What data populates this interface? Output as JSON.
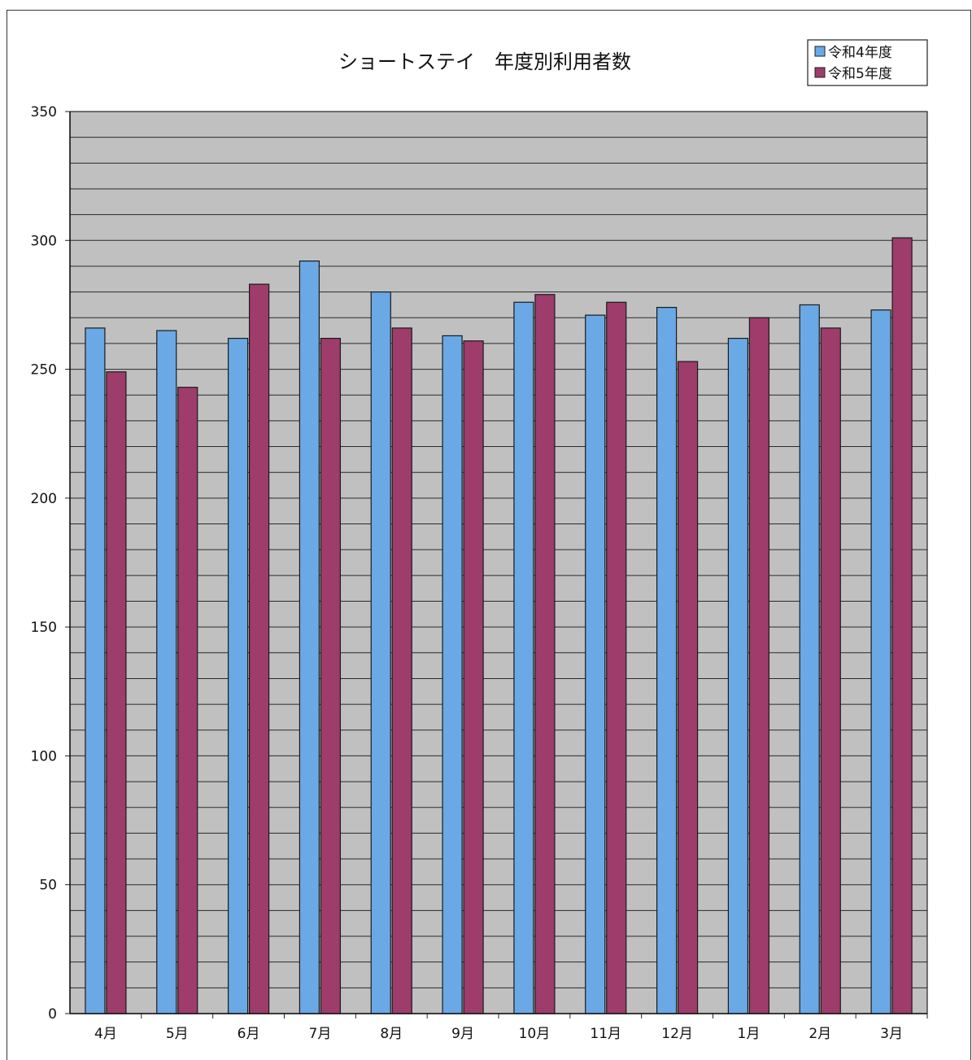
{
  "chart_data": {
    "type": "bar",
    "title": "ショートステイ　年度別利用者数",
    "categories": [
      "4月",
      "5月",
      "6月",
      "7月",
      "8月",
      "9月",
      "10月",
      "11月",
      "12月",
      "1月",
      "2月",
      "3月"
    ],
    "series": [
      {
        "name": "令和4年度",
        "color": "#6aa9e6",
        "values": [
          266,
          265,
          262,
          292,
          280,
          263,
          276,
          271,
          274,
          262,
          275,
          273
        ]
      },
      {
        "name": "令和5年度",
        "color": "#9e3c6b",
        "values": [
          249,
          243,
          283,
          262,
          266,
          261,
          279,
          276,
          253,
          270,
          266,
          301
        ]
      }
    ],
    "ylim": [
      0,
      350
    ],
    "yticks": [
      0,
      50,
      100,
      150,
      200,
      250,
      300,
      350
    ],
    "xlabel": "",
    "ylabel": "",
    "grid": true,
    "legend_position": "top-right",
    "plot_background": "#c0c0c0"
  }
}
